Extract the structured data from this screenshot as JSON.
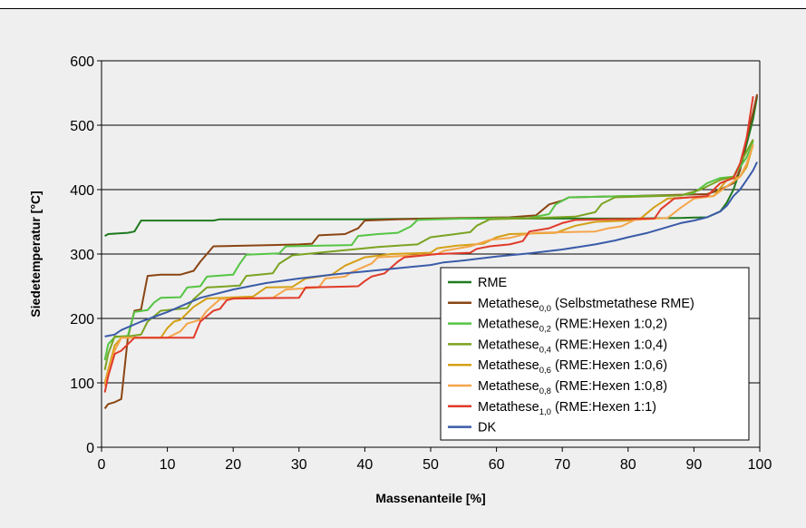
{
  "chart_data": {
    "type": "line",
    "title": "",
    "xlabel": "Massenanteile [%]",
    "ylabel": "Siedetemperatur [°C]",
    "xlim": [
      0,
      100
    ],
    "ylim": [
      0,
      600
    ],
    "x_ticks": [
      "0",
      "10",
      "20",
      "30",
      "40",
      "50",
      "60",
      "70",
      "80",
      "90",
      "100"
    ],
    "y_ticks": [
      "0",
      "100",
      "200",
      "300",
      "400",
      "500",
      "600"
    ],
    "grid": "horizontal",
    "legend_position": "bottom-right",
    "series": [
      {
        "name": "RME",
        "sub": "",
        "suffix": "",
        "color": "#1f7a1f",
        "points": [
          [
            0.5,
            328
          ],
          [
            1,
            331
          ],
          [
            4,
            333
          ],
          [
            5,
            335
          ],
          [
            6,
            352
          ],
          [
            10,
            352
          ],
          [
            17,
            352
          ],
          [
            18,
            354
          ],
          [
            40,
            354
          ],
          [
            50,
            355
          ],
          [
            60,
            355
          ],
          [
            70,
            355
          ],
          [
            80,
            355
          ],
          [
            88,
            356
          ],
          [
            92,
            357
          ],
          [
            94,
            366
          ],
          [
            95,
            380
          ],
          [
            96,
            400
          ],
          [
            97,
            430
          ],
          [
            98,
            470
          ],
          [
            99,
            510
          ],
          [
            99.6,
            545
          ]
        ]
      },
      {
        "name": "Metathese",
        "sub": "0,0",
        "suffix": " (Selbstmetathese RME)",
        "color": "#8b4513",
        "points": [
          [
            0.5,
            60
          ],
          [
            1,
            67
          ],
          [
            2,
            70
          ],
          [
            3,
            75
          ],
          [
            4,
            170
          ],
          [
            5,
            212
          ],
          [
            6,
            214
          ],
          [
            7,
            266
          ],
          [
            9,
            268
          ],
          [
            12,
            268
          ],
          [
            14,
            274
          ],
          [
            15,
            288
          ],
          [
            16,
            300
          ],
          [
            17,
            312
          ],
          [
            22,
            313
          ],
          [
            26,
            314
          ],
          [
            30,
            315
          ],
          [
            32,
            316
          ],
          [
            33,
            329
          ],
          [
            37,
            331
          ],
          [
            39,
            340
          ],
          [
            40,
            352
          ],
          [
            45,
            354
          ],
          [
            55,
            356
          ],
          [
            62,
            357
          ],
          [
            66,
            360
          ],
          [
            68,
            377
          ],
          [
            70,
            383
          ],
          [
            71,
            388
          ],
          [
            80,
            390
          ],
          [
            92,
            393
          ],
          [
            94,
            400
          ],
          [
            96,
            410
          ],
          [
            97,
            430
          ],
          [
            98,
            480
          ],
          [
            99,
            520
          ],
          [
            99.6,
            548
          ]
        ]
      },
      {
        "name": "Metathese",
        "sub": "0,2",
        "suffix": " (RME:Hexen 1:0,2)",
        "color": "#55c544",
        "points": [
          [
            0.5,
            135
          ],
          [
            1,
            160
          ],
          [
            2,
            171
          ],
          [
            4,
            173
          ],
          [
            5,
            210
          ],
          [
            7,
            213
          ],
          [
            8,
            225
          ],
          [
            9,
            232
          ],
          [
            12,
            233
          ],
          [
            13,
            248
          ],
          [
            15,
            250
          ],
          [
            16,
            265
          ],
          [
            20,
            268
          ],
          [
            21,
            285
          ],
          [
            22,
            299
          ],
          [
            27,
            301
          ],
          [
            28,
            312
          ],
          [
            38,
            314
          ],
          [
            39,
            328
          ],
          [
            42,
            331
          ],
          [
            45,
            333
          ],
          [
            47,
            343
          ],
          [
            48,
            353
          ],
          [
            55,
            355
          ],
          [
            65,
            356
          ],
          [
            68,
            362
          ],
          [
            69,
            377
          ],
          [
            71,
            388
          ],
          [
            80,
            390
          ],
          [
            88,
            391
          ],
          [
            90,
            395
          ],
          [
            92,
            410
          ],
          [
            94,
            418
          ],
          [
            96,
            420
          ],
          [
            98,
            450
          ],
          [
            99,
            475
          ]
        ]
      },
      {
        "name": "Metathese",
        "sub": "0,4",
        "suffix": " (RME:Hexen 1:0,4)",
        "color": "#7ba321",
        "points": [
          [
            0.5,
            120
          ],
          [
            1,
            145
          ],
          [
            2,
            172
          ],
          [
            4,
            172
          ],
          [
            6,
            175
          ],
          [
            7,
            195
          ],
          [
            9,
            212
          ],
          [
            13,
            216
          ],
          [
            14,
            230
          ],
          [
            16,
            248
          ],
          [
            21,
            251
          ],
          [
            22,
            266
          ],
          [
            26,
            270
          ],
          [
            27,
            285
          ],
          [
            29,
            298
          ],
          [
            31,
            300
          ],
          [
            42,
            311
          ],
          [
            45,
            313
          ],
          [
            48,
            315
          ],
          [
            50,
            326
          ],
          [
            53,
            330
          ],
          [
            56,
            334
          ],
          [
            57,
            344
          ],
          [
            59,
            354
          ],
          [
            66,
            356
          ],
          [
            72,
            358
          ],
          [
            75,
            365
          ],
          [
            76,
            378
          ],
          [
            78,
            388
          ],
          [
            88,
            391
          ],
          [
            91,
            400
          ],
          [
            94,
            415
          ],
          [
            96,
            420
          ],
          [
            97,
            440
          ],
          [
            99,
            478
          ]
        ]
      },
      {
        "name": "Metathese",
        "sub": "0,6",
        "suffix": " (RME:Hexen 1:0,6)",
        "color": "#d4a017",
        "points": [
          [
            0.5,
            100
          ],
          [
            1,
            120
          ],
          [
            2,
            158
          ],
          [
            3,
            170
          ],
          [
            9,
            170
          ],
          [
            10,
            185
          ],
          [
            11,
            195
          ],
          [
            12,
            198
          ],
          [
            14,
            218
          ],
          [
            16,
            231
          ],
          [
            23,
            234
          ],
          [
            25,
            248
          ],
          [
            29,
            249
          ],
          [
            31,
            262
          ],
          [
            35,
            268
          ],
          [
            37,
            282
          ],
          [
            40,
            295
          ],
          [
            44,
            300
          ],
          [
            50,
            302
          ],
          [
            51,
            309
          ],
          [
            54,
            313
          ],
          [
            58,
            316
          ],
          [
            60,
            326
          ],
          [
            62,
            331
          ],
          [
            69,
            333
          ],
          [
            72,
            344
          ],
          [
            75,
            350
          ],
          [
            80,
            352
          ],
          [
            82,
            356
          ],
          [
            84,
            373
          ],
          [
            86,
            386
          ],
          [
            93,
            390
          ],
          [
            95,
            415
          ],
          [
            97,
            420
          ],
          [
            98,
            435
          ],
          [
            99,
            470
          ]
        ]
      },
      {
        "name": "Metathese",
        "sub": "0,8",
        "suffix": " (RME:Hexen 1:0,8)",
        "color": "#f5a54a",
        "points": [
          [
            0.5,
            95
          ],
          [
            1,
            115
          ],
          [
            2,
            150
          ],
          [
            3,
            170
          ],
          [
            10,
            170
          ],
          [
            11,
            175
          ],
          [
            12,
            180
          ],
          [
            13,
            192
          ],
          [
            15,
            198
          ],
          [
            16,
            212
          ],
          [
            18,
            230
          ],
          [
            26,
            232
          ],
          [
            28,
            245
          ],
          [
            33,
            248
          ],
          [
            34,
            262
          ],
          [
            37,
            265
          ],
          [
            38,
            272
          ],
          [
            41,
            285
          ],
          [
            42,
            295
          ],
          [
            51,
            300
          ],
          [
            52,
            305
          ],
          [
            56,
            312
          ],
          [
            59,
            322
          ],
          [
            62,
            325
          ],
          [
            64,
            330
          ],
          [
            66,
            333
          ],
          [
            75,
            335
          ],
          [
            77,
            340
          ],
          [
            79,
            343
          ],
          [
            81,
            353
          ],
          [
            86,
            356
          ],
          [
            88,
            372
          ],
          [
            90,
            386
          ],
          [
            93,
            390
          ],
          [
            95,
            405
          ],
          [
            97,
            420
          ],
          [
            98,
            440
          ],
          [
            99,
            470
          ]
        ]
      },
      {
        "name": "Metathese",
        "sub": "1,0",
        "suffix": " (RME:Hexen 1:1)",
        "color": "#e03a2a",
        "points": [
          [
            0.5,
            85
          ],
          [
            1,
            110
          ],
          [
            2,
            145
          ],
          [
            3,
            150
          ],
          [
            4,
            160
          ],
          [
            5,
            170
          ],
          [
            14,
            170
          ],
          [
            15,
            195
          ],
          [
            17,
            212
          ],
          [
            18,
            215
          ],
          [
            19,
            228
          ],
          [
            20,
            231
          ],
          [
            30,
            232
          ],
          [
            31,
            248
          ],
          [
            39,
            250
          ],
          [
            40,
            258
          ],
          [
            41,
            265
          ],
          [
            43,
            270
          ],
          [
            45,
            288
          ],
          [
            46,
            295
          ],
          [
            51,
            300
          ],
          [
            56,
            302
          ],
          [
            57,
            308
          ],
          [
            59,
            312
          ],
          [
            62,
            315
          ],
          [
            64,
            320
          ],
          [
            65,
            335
          ],
          [
            68,
            340
          ],
          [
            70,
            348
          ],
          [
            72,
            353
          ],
          [
            84,
            355
          ],
          [
            85,
            370
          ],
          [
            86,
            378
          ],
          [
            87,
            386
          ],
          [
            92,
            390
          ],
          [
            93,
            400
          ],
          [
            94,
            410
          ],
          [
            96,
            418
          ],
          [
            97,
            440
          ],
          [
            98,
            480
          ],
          [
            99,
            545
          ]
        ]
      },
      {
        "name": "DK",
        "sub": "",
        "suffix": "",
        "color": "#3a5ba8",
        "points": [
          [
            0.5,
            172
          ],
          [
            2,
            175
          ],
          [
            3,
            182
          ],
          [
            6,
            195
          ],
          [
            10,
            210
          ],
          [
            15,
            232
          ],
          [
            20,
            245
          ],
          [
            25,
            255
          ],
          [
            30,
            262
          ],
          [
            35,
            268
          ],
          [
            40,
            273
          ],
          [
            45,
            278
          ],
          [
            50,
            283
          ],
          [
            52,
            287
          ],
          [
            55,
            290
          ],
          [
            60,
            296
          ],
          [
            65,
            301
          ],
          [
            70,
            307
          ],
          [
            75,
            315
          ],
          [
            78,
            321
          ],
          [
            80,
            326
          ],
          [
            83,
            333
          ],
          [
            86,
            342
          ],
          [
            88,
            348
          ],
          [
            90,
            352
          ],
          [
            92,
            357
          ],
          [
            94,
            366
          ],
          [
            95,
            375
          ],
          [
            96,
            390
          ],
          [
            97,
            400
          ],
          [
            98,
            415
          ],
          [
            99,
            430
          ],
          [
            99.6,
            443
          ]
        ]
      }
    ]
  }
}
